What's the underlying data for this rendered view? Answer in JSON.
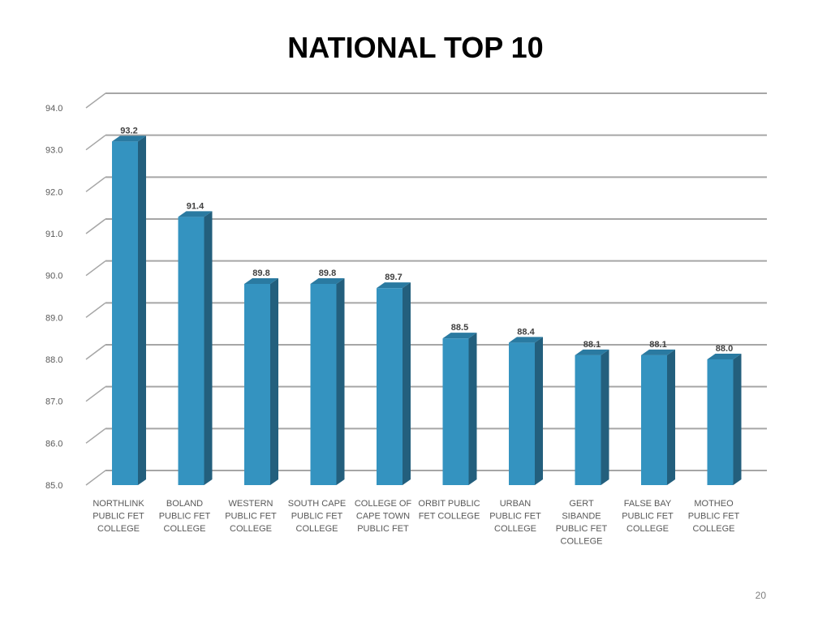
{
  "slide": {
    "title": "NATIONAL TOP 10",
    "page_number": "20"
  },
  "chart_data": {
    "type": "bar",
    "title": "",
    "xlabel": "",
    "ylabel": "",
    "ylim": [
      85.0,
      94.0
    ],
    "yticks": [
      "85.0",
      "86.0",
      "87.0",
      "88.0",
      "89.0",
      "90.0",
      "91.0",
      "92.0",
      "93.0",
      "94.0"
    ],
    "categories": [
      [
        "NORTHLINK",
        "PUBLIC FET",
        "COLLEGE"
      ],
      [
        "BOLAND",
        "PUBLIC FET",
        "COLLEGE"
      ],
      [
        "WESTERN",
        "PUBLIC FET",
        "COLLEGE"
      ],
      [
        "SOUTH CAPE",
        "PUBLIC FET",
        "COLLEGE"
      ],
      [
        "COLLEGE OF",
        "CAPE TOWN",
        "PUBLIC FET"
      ],
      [
        "ORBIT PUBLIC",
        "FET COLLEGE"
      ],
      [
        "URBAN",
        "PUBLIC FET",
        "COLLEGE"
      ],
      [
        "GERT",
        "SIBANDE",
        "PUBLIC FET",
        "COLLEGE"
      ],
      [
        "FALSE BAY",
        "PUBLIC FET",
        "COLLEGE"
      ],
      [
        "MOTHEO",
        "PUBLIC FET",
        "COLLEGE"
      ]
    ],
    "values": [
      93.2,
      91.4,
      89.8,
      89.8,
      89.7,
      88.5,
      88.4,
      88.1,
      88.1,
      88.0
    ],
    "data_labels": [
      "93.2",
      "91.4",
      "89.8",
      "89.8",
      "89.7",
      "88.5",
      "88.4",
      "88.1",
      "88.1",
      "88.0"
    ],
    "grid": true,
    "style": "3d-column",
    "colors": {
      "bar_front": "#3493C0",
      "bar_side": "#235F7D",
      "bar_top": "#2A7AA1",
      "grid": "#A6A6A6"
    }
  }
}
